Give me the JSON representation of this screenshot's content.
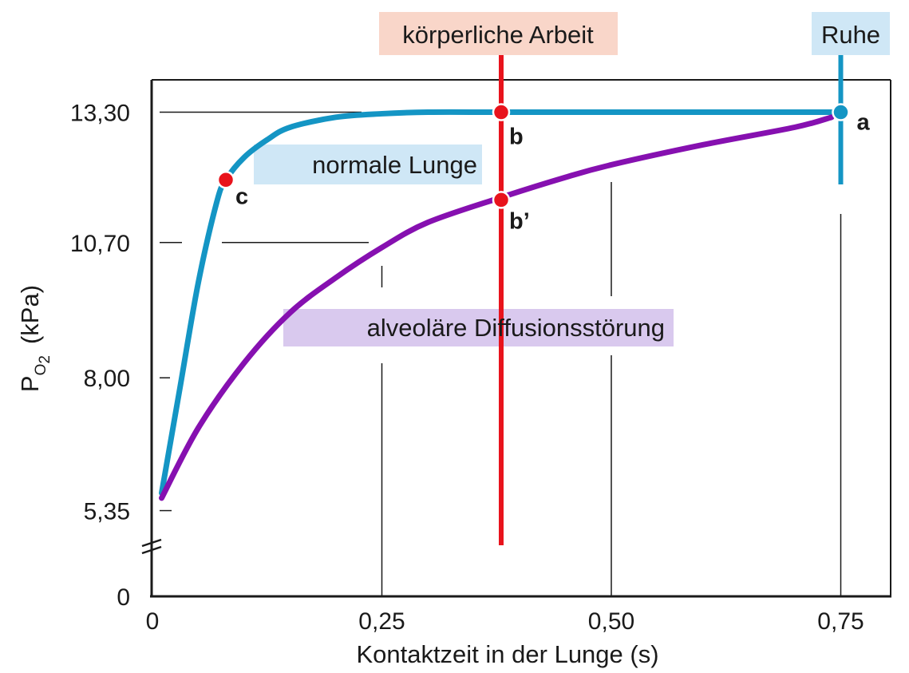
{
  "chart_data": {
    "type": "line",
    "xlabel": "Kontaktzeit in der Lunge (s)",
    "ylabel": {
      "main": "P",
      "sub": "O",
      "sub2": "2",
      "unit": "(kPa)"
    },
    "xlim": [
      0,
      0.8
    ],
    "y_ticks": [
      {
        "label": "13,30",
        "value": 13.3
      },
      {
        "label": "10,70",
        "value": 10.7
      },
      {
        "label": "8,00",
        "value": 8.0
      },
      {
        "label": "5,35",
        "value": 5.35
      },
      {
        "label": "0",
        "value": 0
      }
    ],
    "x_ticks": [
      {
        "label": "0",
        "value": 0
      },
      {
        "label": "0,25",
        "value": 0.25
      },
      {
        "label": "0,50",
        "value": 0.5
      },
      {
        "label": "0,75",
        "value": 0.75
      }
    ],
    "series": [
      {
        "name": "normale Lunge",
        "color": "#1495c4",
        "x": [
          0.01,
          0.03,
          0.05,
          0.07,
          0.08,
          0.1,
          0.125,
          0.15,
          0.2,
          0.25,
          0.3,
          0.38,
          0.5,
          0.75
        ],
        "y": [
          5.7,
          7.8,
          9.9,
          11.5,
          11.95,
          12.4,
          12.75,
          13.0,
          13.2,
          13.27,
          13.3,
          13.3,
          13.3,
          13.3
        ]
      },
      {
        "name": "alveoläre Diffusionsstörung",
        "color": "#8610b0",
        "x": [
          0.01,
          0.05,
          0.1,
          0.15,
          0.2,
          0.25,
          0.3,
          0.38,
          0.45,
          0.5,
          0.6,
          0.7,
          0.74
        ],
        "y": [
          5.6,
          7.0,
          8.3,
          9.3,
          10.0,
          10.6,
          11.1,
          11.6,
          12.0,
          12.25,
          12.65,
          13.0,
          13.2
        ]
      }
    ],
    "points": [
      {
        "label": "a",
        "x": 0.75,
        "y": 13.3,
        "color": "#1495c4"
      },
      {
        "label": "b",
        "x": 0.38,
        "y": 13.3,
        "color": "#e8131c"
      },
      {
        "label": "b’",
        "x": 0.38,
        "y": 11.55,
        "color": "#e8131c"
      },
      {
        "label": "c",
        "x": 0.08,
        "y": 11.95,
        "color": "#e8131c"
      }
    ],
    "annotations": {
      "koerperliche_arbeit": {
        "text": "körperliche Arbeit",
        "x": 0.38,
        "line_color": "#e8131c",
        "box_color": "#f9d6c9"
      },
      "ruhe": {
        "text": "Ruhe",
        "x": 0.75,
        "line_color": "#1495c4",
        "box_color": "#cfe7f6"
      },
      "normale_lunge": {
        "text": "normale Lunge",
        "box_color": "#cfe7f6"
      },
      "diffusionsstoerung": {
        "text": "alveoläre Diffusionsstörung",
        "box_color": "#d9c9ee"
      }
    }
  }
}
